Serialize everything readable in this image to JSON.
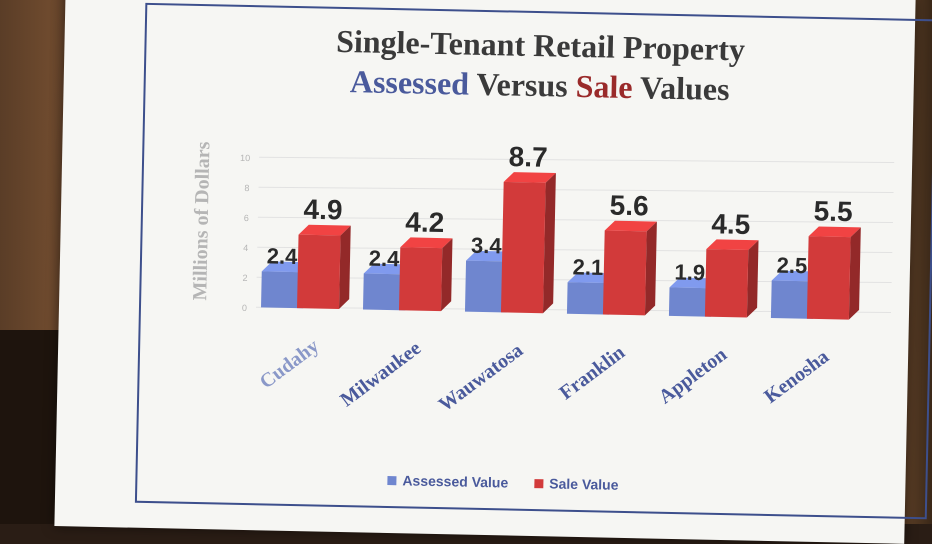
{
  "title_line1": "Single-Tenant Retail Property",
  "title_line2": {
    "part1": "Assessed",
    "part2": "Versus",
    "part3": "Sale",
    "part4": "Values"
  },
  "legend": {
    "assessed": "Assessed Value",
    "sale": "Sale Value"
  },
  "colors": {
    "assessed": "#6f86cf",
    "sale": "#d23a3a",
    "axis_text": "#b5b5b5",
    "category_text": "#4a5a9c",
    "value_text": "#2a2a2a"
  },
  "chart_data": {
    "type": "bar",
    "title": "Single-Tenant Retail Property Assessed Versus Sale Values",
    "ylabel": "Millions of Dollars",
    "ylim": [
      0,
      10
    ],
    "yticks": [
      "0",
      "2",
      "4",
      "6",
      "8",
      "10"
    ],
    "categories": [
      "Cudahy",
      "Milwaukee",
      "Wauwatosa",
      "Franklin",
      "Appleton",
      "Kenosha"
    ],
    "series": [
      {
        "name": "Assessed Value",
        "values": [
          2.4,
          2.4,
          3.4,
          2.1,
          1.9,
          2.5
        ],
        "labels": [
          "2.4",
          "2.4",
          "3.4",
          "2.1",
          "1.9",
          "2.5"
        ]
      },
      {
        "name": "Sale Value",
        "values": [
          4.9,
          4.2,
          8.7,
          5.6,
          4.5,
          5.5
        ],
        "labels": [
          "4.9",
          "4.2",
          "8.7",
          "5.6",
          "4.5",
          "5.5"
        ]
      }
    ],
    "legend_position": "bottom",
    "grid": true
  }
}
